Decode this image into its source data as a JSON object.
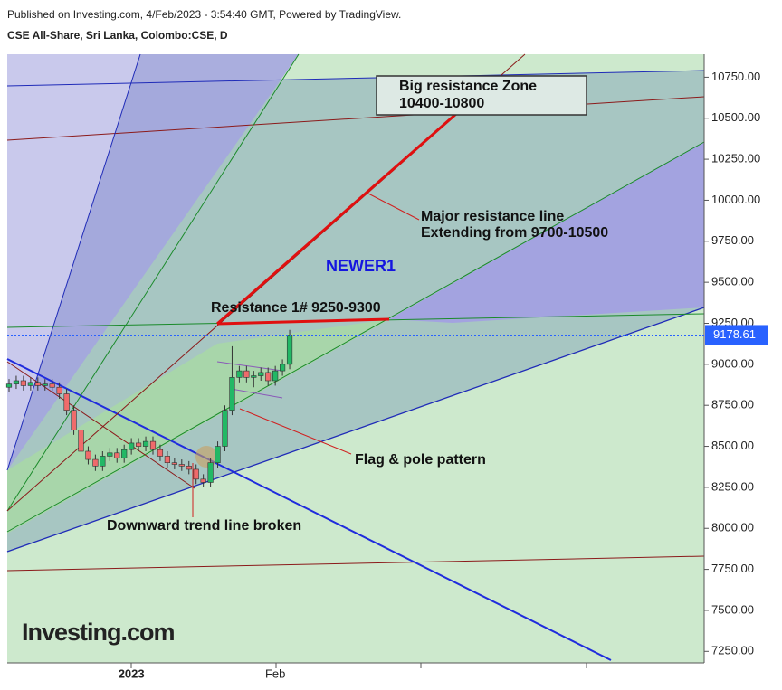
{
  "header": {
    "published": "Published on Investing.com, 4/Feb/2023 - 3:54:40 GMT, Powered by TradingView.",
    "symbol": "CSE All-Share, Sri Lanka, Colombo:CSE, D"
  },
  "chart_data": {
    "type": "candlestick",
    "categories": [
      null,
      null,
      null,
      null,
      null,
      null,
      null,
      null,
      null,
      null,
      null,
      null,
      null,
      null,
      null,
      null,
      null,
      "2023",
      null,
      null,
      null,
      null,
      null,
      null,
      null,
      null,
      null,
      null,
      null,
      null,
      null,
      null,
      null,
      null,
      null,
      null,
      null,
      "Feb",
      null,
      null
    ],
    "open": [
      8860,
      8880,
      8900,
      8870,
      8890,
      8870,
      8880,
      8860,
      8820,
      8720,
      8600,
      8470,
      8420,
      8380,
      8440,
      8460,
      8430,
      8480,
      8520,
      8500,
      8530,
      8480,
      8440,
      8400,
      8390,
      8380,
      8360,
      8300,
      8280,
      8400,
      8500,
      8720,
      8920,
      8960,
      8920,
      8930,
      8950,
      8900,
      8960,
      9000
    ],
    "high": [
      8910,
      8930,
      8930,
      8920,
      8920,
      8910,
      8910,
      8890,
      8850,
      8750,
      8630,
      8500,
      8450,
      8470,
      8490,
      8490,
      8510,
      8550,
      8550,
      8560,
      8560,
      8510,
      8470,
      8430,
      8420,
      8410,
      8390,
      8330,
      8430,
      8530,
      8750,
      9110,
      8990,
      8990,
      8960,
      8980,
      8980,
      8990,
      9030,
      9210
    ],
    "low": [
      8830,
      8850,
      8840,
      8840,
      8840,
      8840,
      8830,
      8790,
      8690,
      8570,
      8440,
      8390,
      8350,
      8350,
      8410,
      8400,
      8400,
      8450,
      8470,
      8470,
      8450,
      8410,
      8370,
      8360,
      8350,
      8330,
      8270,
      8250,
      8250,
      8370,
      8470,
      8690,
      8890,
      8890,
      8860,
      8900,
      8870,
      8870,
      8930,
      8970
    ],
    "close": [
      8880,
      8900,
      8870,
      8890,
      8870,
      8880,
      8860,
      8820,
      8720,
      8600,
      8470,
      8420,
      8380,
      8440,
      8460,
      8430,
      8480,
      8520,
      8500,
      8530,
      8480,
      8440,
      8400,
      8390,
      8380,
      8360,
      8300,
      8280,
      8400,
      8500,
      8720,
      8920,
      8960,
      8920,
      8930,
      8950,
      8900,
      8960,
      9000,
      9178.61
    ],
    "up_color": "#22b865",
    "down_color": "#ef6b6b",
    "last_price": {
      "value": 9178.61,
      "label": "9178.61"
    },
    "ylim": [
      7180,
      10890
    ],
    "yticks": [
      {
        "value": 7250,
        "label": "7250.00"
      },
      {
        "value": 7500,
        "label": "7500.00"
      },
      {
        "value": 7750,
        "label": "7750.00"
      },
      {
        "value": 8000,
        "label": "8000.00"
      },
      {
        "value": 8250,
        "label": "8250.00"
      },
      {
        "value": 8500,
        "label": "8500.00"
      },
      {
        "value": 8750,
        "label": "8750.00"
      },
      {
        "value": 9000,
        "label": "9000.00"
      },
      {
        "value": 9250,
        "label": "9250.00"
      },
      {
        "value": 9500,
        "label": "9500.00"
      },
      {
        "value": 9750,
        "label": "9750.00"
      },
      {
        "value": 10000,
        "label": "10000.00"
      },
      {
        "value": 10250,
        "label": "10250.00"
      },
      {
        "value": 10500,
        "label": "10500.00"
      },
      {
        "value": 10750,
        "label": "10750.00"
      }
    ],
    "annotations": {
      "zone_title": "Big resistance Zone",
      "zone_range": "10400-10800",
      "major_1": "Major resistance line",
      "major_2": "Extending from 9700-10500",
      "newer": "NEWER1",
      "resistance": "Resistance 1# 9250-9300",
      "flag": "Flag & pole pattern",
      "trend": "Downward trend line broken"
    },
    "logo": "Investing.com"
  }
}
